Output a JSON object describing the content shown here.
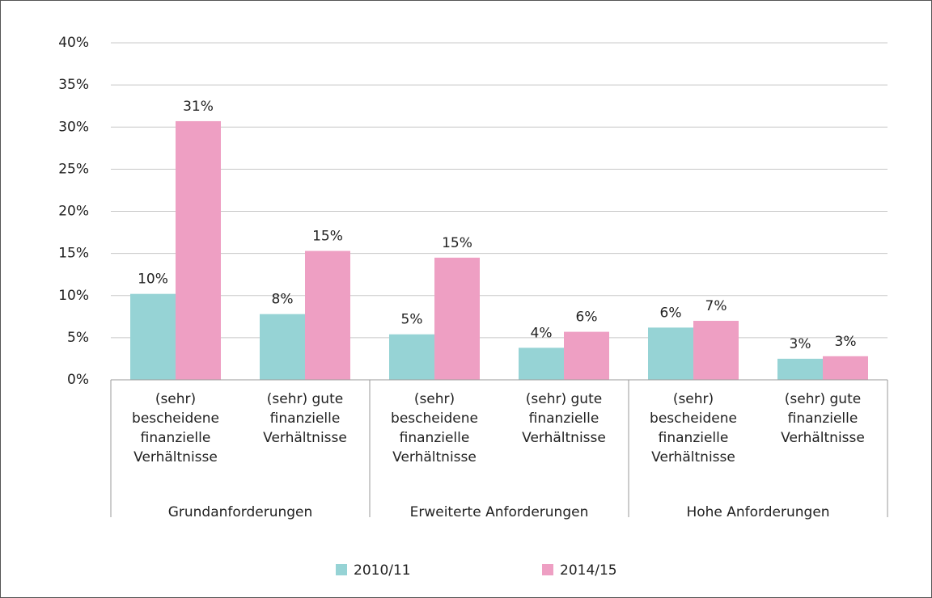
{
  "chart_data": {
    "type": "bar",
    "categories": [
      "(sehr) bescheidene finanzielle Verhältnisse",
      "(sehr) gute finanzielle Verhältnisse",
      "(sehr) bescheidene finanzielle Verhältnisse",
      "(sehr) gute finanzielle Verhältnisse",
      "(sehr) bescheidene finanzielle Verhältnisse",
      "(sehr) gute finanzielle Verhältnisse"
    ],
    "groups": [
      "Grundanforderungen",
      "Erweiterte Anforderungen",
      "Hohe Anforderungen"
    ],
    "series": [
      {
        "name": "2010/11",
        "color": "#96d3d5",
        "values": [
          10.2,
          7.8,
          5.4,
          3.8,
          6.2,
          2.5
        ],
        "value_labels": [
          "10%",
          "8%",
          "5%",
          "4%",
          "6%",
          "3%"
        ]
      },
      {
        "name": "2014/15",
        "color": "#ee9fc3",
        "values": [
          30.7,
          15.3,
          14.5,
          5.7,
          7.0,
          2.8
        ],
        "value_labels": [
          "31%",
          "15%",
          "15%",
          "6%",
          "7%",
          "3%"
        ]
      }
    ],
    "ylim": [
      0,
      40
    ],
    "yticks": [
      {
        "value": 0,
        "label": "0%"
      },
      {
        "value": 5,
        "label": "5%"
      },
      {
        "value": 10,
        "label": "10%"
      },
      {
        "value": 15,
        "label": "15%"
      },
      {
        "value": 20,
        "label": "20%"
      },
      {
        "value": 25,
        "label": "25%"
      },
      {
        "value": 30,
        "label": "30%"
      },
      {
        "value": 35,
        "label": "35%"
      },
      {
        "value": 40,
        "label": "40%"
      }
    ],
    "grid": true,
    "legend": "bottom"
  }
}
